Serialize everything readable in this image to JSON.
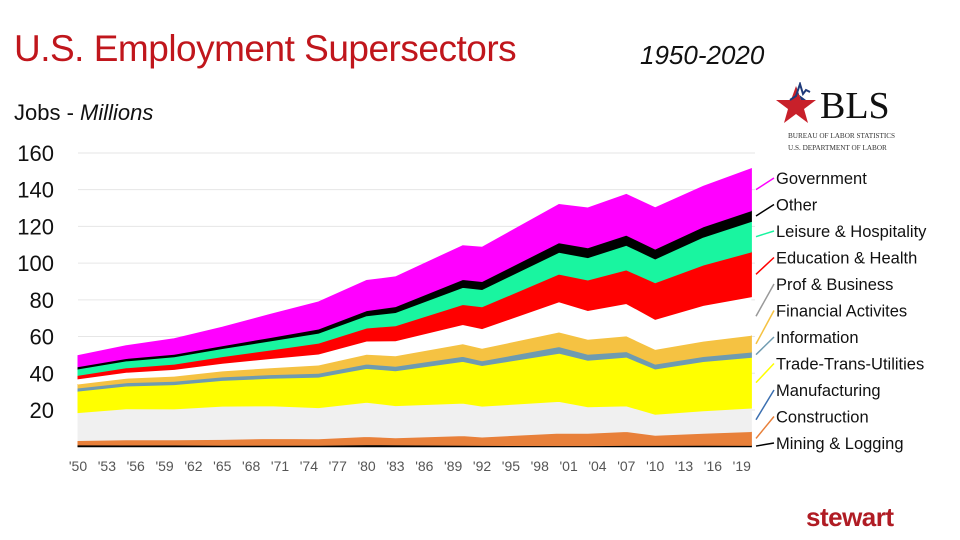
{
  "header": {
    "title": "U.S. Employment Supersectors",
    "period": "1950-2020",
    "ylabel_prefix": "Jobs - ",
    "ylabel_unit": "Millions"
  },
  "logos": {
    "bls": {
      "text": "BLS",
      "line1": "BUREAU OF LABOR STATISTICS",
      "line2": "U.S. DEPARTMENT OF LABOR"
    },
    "brand": "stewart"
  },
  "chart_data": {
    "type": "area",
    "stacked": true,
    "title": "U.S. Employment Supersectors",
    "subtitle": "1950-2020",
    "ylabel": "Jobs - Millions",
    "xlabel": "",
    "ylim": [
      0,
      160
    ],
    "yticks": [
      20,
      40,
      60,
      80,
      100,
      120,
      140,
      160
    ],
    "grid": true,
    "legend": "right",
    "xtick_labels": [
      "'50",
      "'53",
      "'56",
      "'59",
      "'62",
      "'65",
      "'68",
      "'71",
      "'74",
      "'77",
      "'80",
      "'83",
      "'86",
      "'89",
      "'92",
      "'95",
      "'98",
      "'01",
      "'04",
      "'07",
      "'10",
      "'13",
      "'16",
      "'19"
    ],
    "xtick_years": [
      1950,
      1953,
      1956,
      1959,
      1962,
      1965,
      1968,
      1971,
      1974,
      1977,
      1980,
      1983,
      1986,
      1989,
      1992,
      1995,
      1998,
      2001,
      2004,
      2007,
      2010,
      2013,
      2016,
      2019
    ],
    "x": [
      1950,
      1955,
      1960,
      1965,
      1970,
      1975,
      1980,
      1983,
      1990,
      1992,
      2000,
      2003,
      2007,
      2010,
      2015,
      2020
    ],
    "series": [
      {
        "name": "Mining & Logging",
        "color": "#000000",
        "values": [
          1.0,
          0.95,
          0.9,
          0.8,
          0.8,
          0.8,
          1.1,
          1.0,
          0.8,
          0.7,
          0.6,
          0.6,
          0.7,
          0.7,
          0.8,
          0.7
        ]
      },
      {
        "name": "Construction",
        "color": "#e8803a",
        "values": [
          2.4,
          2.8,
          2.9,
          3.2,
          3.65,
          3.5,
          4.45,
          3.9,
          5.26,
          4.6,
          6.8,
          6.7,
          7.6,
          5.5,
          6.5,
          7.6
        ]
      },
      {
        "name": "Manufacturing",
        "color": "#f0f0f0",
        "values": [
          15.2,
          16.9,
          16.8,
          18.1,
          17.8,
          17.0,
          18.7,
          17.5,
          17.7,
          16.8,
          17.3,
          14.5,
          13.9,
          11.5,
          12.3,
          12.8
        ]
      },
      {
        "name": "Trade-Trans-Utilities",
        "color": "#ffff00",
        "values": [
          11.7,
          12.4,
          13.2,
          14.0,
          15.0,
          16.6,
          18.4,
          19.0,
          22.7,
          22.1,
          26.2,
          25.3,
          26.6,
          24.6,
          26.8,
          27.6
        ]
      },
      {
        "name": "Information",
        "color": "#6f9bb0",
        "values": [
          1.7,
          1.8,
          1.9,
          1.9,
          2.0,
          2.1,
          2.4,
          2.4,
          2.7,
          2.6,
          3.6,
          3.2,
          3.0,
          2.7,
          2.75,
          2.9
        ]
      },
      {
        "name": "Financial Activites",
        "color": "#f5c242",
        "values": [
          1.9,
          2.2,
          2.5,
          3.0,
          3.5,
          4.2,
          5.0,
          5.5,
          6.6,
          6.5,
          7.7,
          7.9,
          8.3,
          7.7,
          8.1,
          8.8
        ]
      },
      {
        "name": "Prof & Business",
        "color": "#ffffff",
        "values": [
          3.1,
          3.5,
          3.9,
          4.5,
          5.3,
          6.3,
          7.5,
          8.4,
          10.8,
          11.0,
          16.7,
          16.0,
          17.9,
          16.7,
          19.7,
          21.3
        ]
      },
      {
        "name": "Education & Health",
        "color": "#ff0000",
        "values": [
          1.9,
          2.4,
          2.9,
          3.6,
          4.6,
          5.9,
          7.1,
          8.2,
          10.9,
          11.9,
          15.1,
          16.6,
          18.3,
          19.9,
          22.0,
          24.4
        ]
      },
      {
        "name": "Leisure & Hospitality",
        "color": "#19f5a0",
        "values": [
          3.5,
          3.8,
          4.0,
          4.4,
          5.0,
          5.5,
          6.7,
          7.2,
          9.3,
          9.4,
          11.9,
          12.2,
          13.4,
          13.0,
          15.2,
          16.6
        ]
      },
      {
        "name": "Other",
        "color": "#000000",
        "values": [
          1.2,
          1.3,
          1.4,
          1.5,
          1.8,
          2.2,
          2.8,
          3.2,
          4.3,
          4.4,
          5.2,
          5.4,
          5.5,
          5.3,
          5.6,
          5.9
        ]
      },
      {
        "name": "Government",
        "color": "#ff00ff",
        "values": [
          6.0,
          6.9,
          8.4,
          10.1,
          12.6,
          14.7,
          16.4,
          16.2,
          18.4,
          18.6,
          20.8,
          21.6,
          22.2,
          22.5,
          22.0,
          22.8
        ]
      }
    ],
    "legend_order": [
      "Government",
      "Other",
      "Leisure & Hospitality",
      "Education & Health",
      "Prof & Business",
      "Financial Activites",
      "Information",
      "Trade-Trans-Utilities",
      "Manufacturing",
      "Construction",
      "Mining & Logging"
    ]
  }
}
